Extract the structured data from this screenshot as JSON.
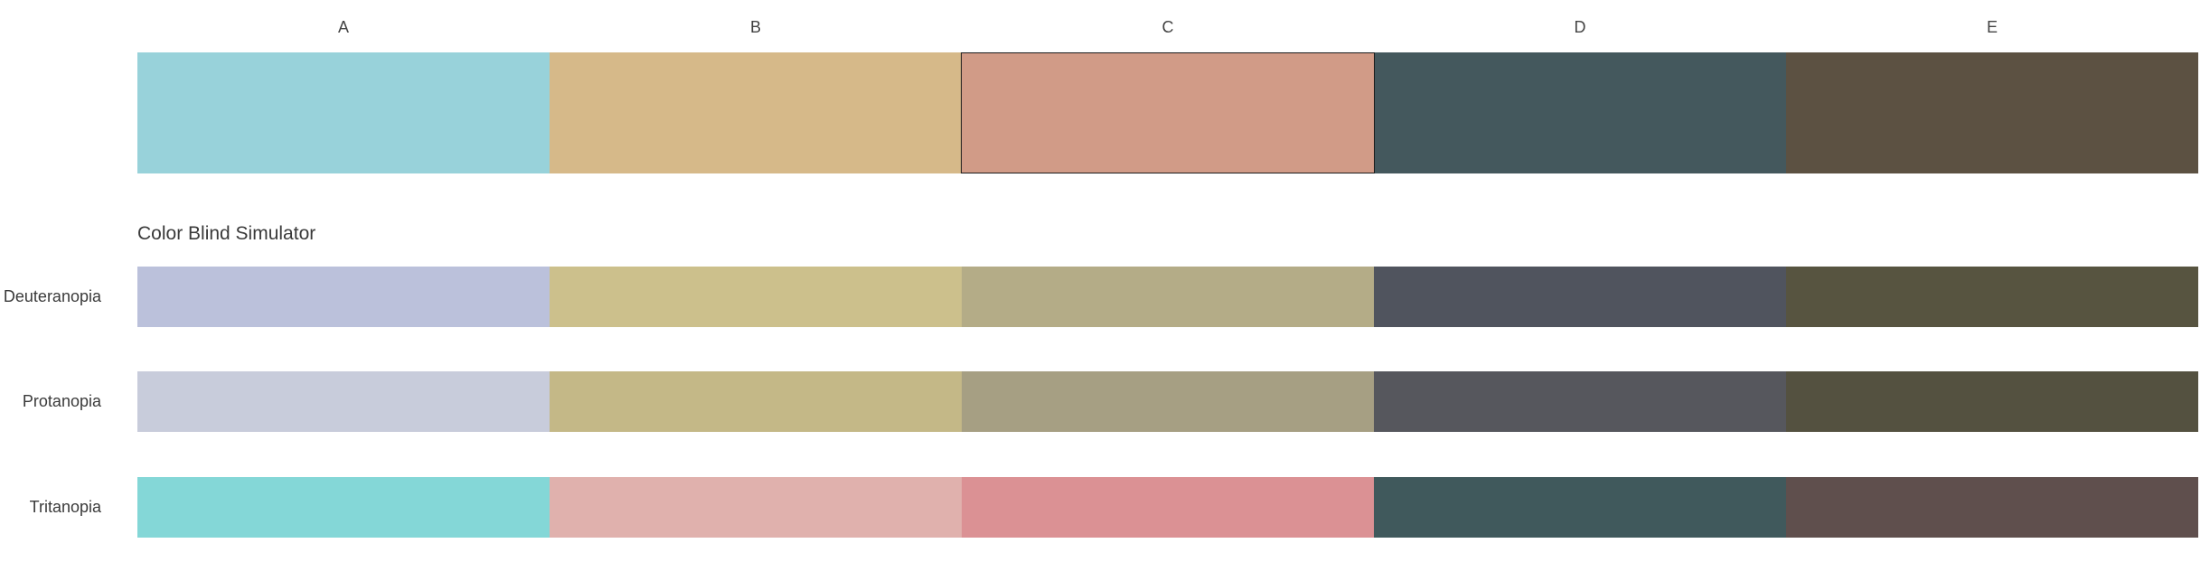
{
  "columns": [
    "A",
    "B",
    "C",
    "D",
    "E"
  ],
  "main_colors": [
    "#98D2DA",
    "#D6B989",
    "#D19B87",
    "#44585D",
    "#5C5142"
  ],
  "selected_index": 2,
  "simulator": {
    "title": "Color Blind Simulator",
    "rows": [
      {
        "label": "Deuteranopia",
        "colors": [
          "#BBC1DB",
          "#CCC08C",
          "#B4AC87",
          "#50545E",
          "#575440"
        ]
      },
      {
        "label": "Protanopia",
        "colors": [
          "#C8CCDB",
          "#C4B887",
          "#A69F83",
          "#56575D",
          "#545140"
        ]
      },
      {
        "label": "Tritanopia",
        "colors": [
          "#84D7D7",
          "#E0B1AD",
          "#DB9194",
          "#40595C",
          "#5F4F4D"
        ]
      }
    ]
  }
}
